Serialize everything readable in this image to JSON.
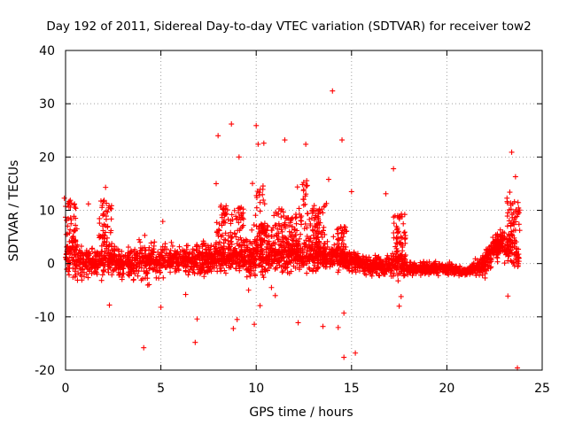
{
  "chart_data": {
    "type": "scatter",
    "title": "Day 192 of 2011, Sidereal Day-to-day VTEC variation (SDTVAR) for receiver tow2",
    "xlabel": "GPS time / hours",
    "ylabel": "SDTVAR / TECUs",
    "xlim": [
      0,
      25
    ],
    "ylim": [
      -20,
      40
    ],
    "x_ticks": [
      "0",
      "5",
      "10",
      "15",
      "20",
      "25"
    ],
    "y_ticks": [
      "-20",
      "-10",
      "0",
      "10",
      "20",
      "30",
      "40"
    ],
    "grid": true,
    "marker": "+",
    "series_color": "#ff0000",
    "band_envelope": {
      "x": [
        0,
        0.3,
        1,
        1.5,
        2,
        2.5,
        3,
        4,
        5,
        6,
        7,
        8,
        9,
        10,
        11,
        12,
        13,
        14,
        15,
        16,
        17,
        17.5,
        18,
        19,
        20,
        21,
        22,
        22.5,
        23,
        23.5,
        23.8
      ],
      "upper": [
        4,
        5,
        3,
        2,
        5,
        3,
        2,
        4,
        3,
        3,
        3,
        4,
        4,
        4,
        4,
        4,
        4,
        3,
        2,
        1,
        1,
        4,
        0,
        0,
        0,
        -1,
        2,
        5,
        6,
        7,
        2
      ],
      "lower": [
        -2,
        -2,
        -2,
        -2,
        -2,
        -2,
        -2,
        -3,
        -2,
        -1,
        -2,
        -1,
        -1,
        -2,
        -1,
        -1,
        -1,
        -1,
        -1,
        -2,
        -2,
        -3,
        -2,
        -2,
        -2,
        -2,
        -2,
        1,
        1,
        0,
        -2
      ]
    },
    "spike_x": [
      0.25,
      2.1,
      8.2,
      9.0,
      10.1,
      10.5,
      11.2,
      11.8,
      12.4,
      13.0,
      13.4,
      14.4,
      17.5,
      23.5
    ],
    "outliers": {
      "x": [
        0.3,
        1.2,
        2.1,
        2.3,
        4.1,
        5.0,
        5.1,
        6.3,
        6.8,
        6.9,
        7.9,
        8.0,
        8.7,
        8.8,
        9.0,
        9.1,
        9.6,
        9.9,
        10.0,
        10.1,
        10.2,
        10.4,
        10.8,
        11.0,
        11.5,
        12.2,
        12.6,
        13.5,
        13.8,
        14.0,
        14.3,
        14.5,
        14.6,
        14.6,
        15.0,
        15.2,
        16.8,
        17.2,
        17.5,
        17.6,
        23.2,
        23.3,
        23.4,
        23.6,
        23.7
      ],
      "y": [
        8.2,
        11.2,
        14.3,
        -7.8,
        -15.8,
        -8.2,
        7.9,
        -5.8,
        -14.8,
        -10.4,
        15.0,
        24.0,
        26.2,
        -12.2,
        -10.5,
        20.0,
        -5.0,
        -11.4,
        25.9,
        22.4,
        -7.9,
        22.6,
        -4.5,
        -6.0,
        23.2,
        -11.1,
        22.4,
        -11.8,
        15.8,
        32.4,
        -12.0,
        23.2,
        -17.6,
        -9.3,
        13.5,
        -16.8,
        13.1,
        17.8,
        -8.0,
        -6.2,
        -6.1,
        13.4,
        20.9,
        16.3,
        -19.6
      ]
    }
  }
}
